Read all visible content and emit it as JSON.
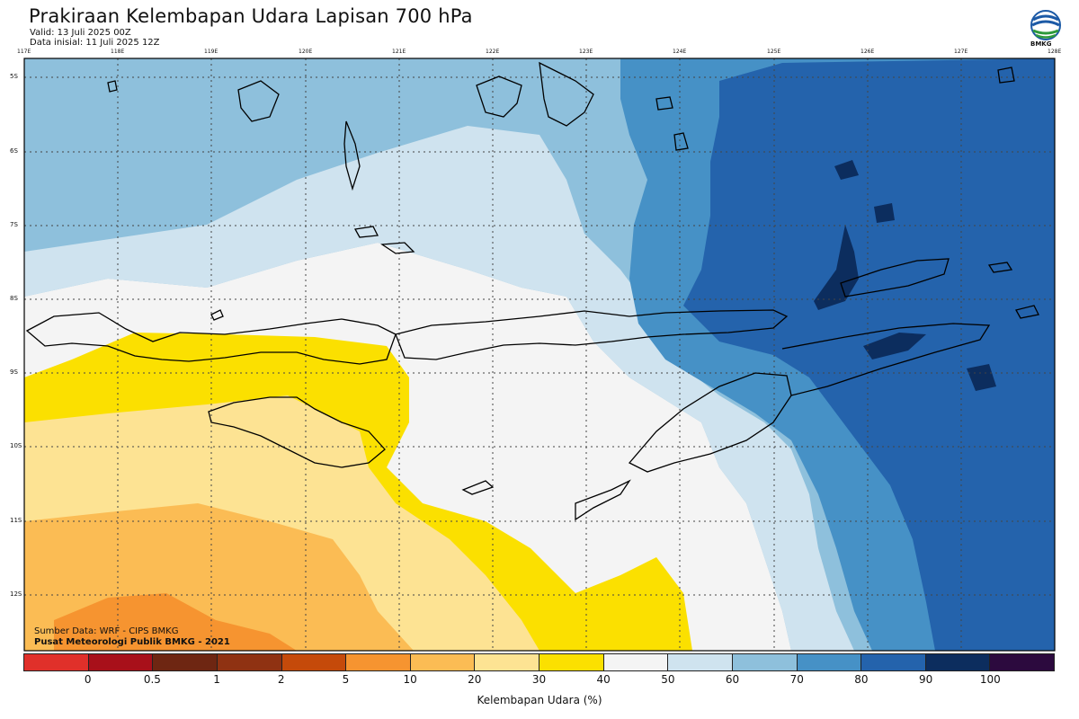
{
  "header": {
    "title": "Prakiraan Kelembapan Udara Lapisan 700 hPa",
    "valid": "Valid: 13 Juli 2025 00Z",
    "init": "Data inisial: 11 Juli 2025 12Z",
    "logo_text": "BMKG"
  },
  "map": {
    "lon_labels": [
      "117E",
      "118E",
      "119E",
      "120E",
      "121E",
      "122E",
      "123E",
      "124E",
      "125E",
      "126E",
      "127E",
      "128E"
    ],
    "lat_labels": [
      "5S",
      "6S",
      "7S",
      "8S",
      "9S",
      "10S",
      "11S",
      "12S"
    ],
    "credits": [
      "Sumber Data: WRF - CIPS BMKG",
      "Pusat Meteorologi Publik BMKG - 2021"
    ]
  },
  "colorbar": {
    "colors": [
      "#e0302a",
      "#a8101a",
      "#6e2612",
      "#8f3212",
      "#c54a0a",
      "#f69430",
      "#fbbc54",
      "#fde393",
      "#fbe000",
      "#f4f4f4",
      "#cfe3ef",
      "#8ec0dc",
      "#4691c6",
      "#2463ac",
      "#0c2d5e",
      "#2c0a3e"
    ],
    "ticks": [
      "0",
      "0.5",
      "1",
      "2",
      "5",
      "10",
      "20",
      "30",
      "40",
      "50",
      "60",
      "70",
      "80",
      "90",
      "100"
    ],
    "label": "Kelembapan Udara (%)"
  }
}
